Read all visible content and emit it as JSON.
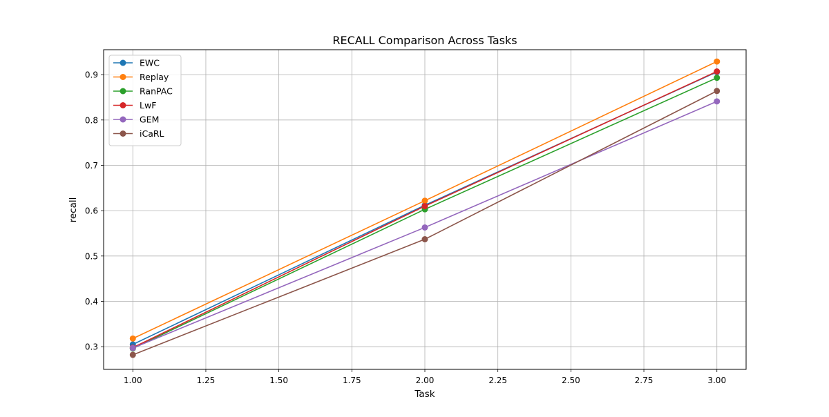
{
  "chart_data": {
    "type": "line",
    "title": "RECALL Comparison Across Tasks",
    "xlabel": "Task",
    "ylabel": "recall",
    "x": [
      1,
      2,
      3
    ],
    "xlim": [
      0.9,
      3.1
    ],
    "ylim": [
      0.25,
      0.955
    ],
    "xticks": [
      1.0,
      1.25,
      1.5,
      1.75,
      2.0,
      2.25,
      2.5,
      2.75,
      3.0
    ],
    "xtick_labels": [
      "1.00",
      "1.25",
      "1.50",
      "1.75",
      "2.00",
      "2.25",
      "2.50",
      "2.75",
      "3.00"
    ],
    "yticks": [
      0.3,
      0.4,
      0.5,
      0.6,
      0.7,
      0.8,
      0.9
    ],
    "ytick_labels": [
      "0.3",
      "0.4",
      "0.5",
      "0.6",
      "0.7",
      "0.8",
      "0.9"
    ],
    "grid": true,
    "legend_position": "top-left",
    "series": [
      {
        "name": "EWC",
        "color": "#1f77b4",
        "values": [
          0.305,
          0.612,
          0.906
        ]
      },
      {
        "name": "Replay",
        "color": "#ff7f0e",
        "values": [
          0.318,
          0.622,
          0.929
        ]
      },
      {
        "name": "RanPAC",
        "color": "#2ca02c",
        "values": [
          0.296,
          0.603,
          0.893
        ]
      },
      {
        "name": "LwF",
        "color": "#d62728",
        "values": [
          0.298,
          0.61,
          0.907
        ]
      },
      {
        "name": "GEM",
        "color": "#9467bd",
        "values": [
          0.297,
          0.563,
          0.841
        ]
      },
      {
        "name": "iCaRL",
        "color": "#8c564b",
        "values": [
          0.282,
          0.537,
          0.864
        ]
      }
    ]
  }
}
